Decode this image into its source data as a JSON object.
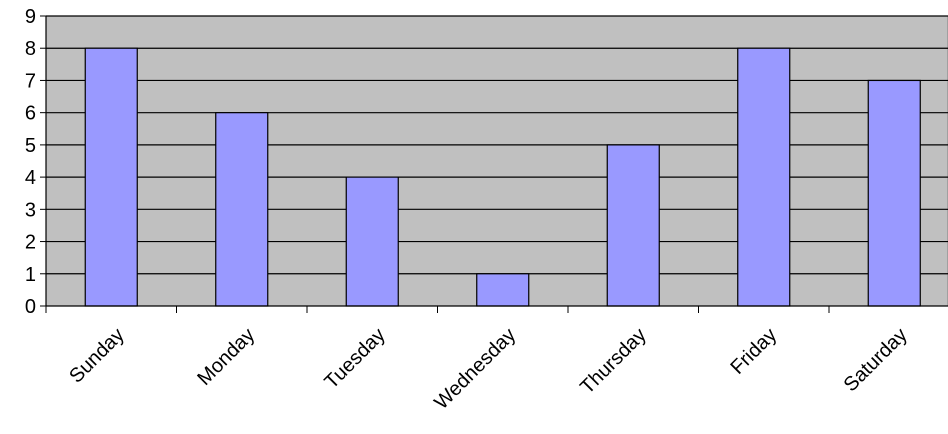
{
  "chart_data": {
    "type": "bar",
    "categories": [
      "Sunday",
      "Monday",
      "Tuesday",
      "Wednesday",
      "Thursday",
      "Friday",
      "Saturday"
    ],
    "values": [
      8,
      6,
      4,
      1,
      5,
      8,
      7
    ],
    "title": "",
    "xlabel": "",
    "ylabel": "",
    "ylim": [
      0,
      9
    ],
    "yticks": [
      "0",
      "1",
      "2",
      "3",
      "4",
      "5",
      "6",
      "7",
      "8",
      "9"
    ],
    "grid": true,
    "legend": "none",
    "colors": {
      "bar_fill": "#9999ff",
      "bar_stroke": "#000000",
      "plot_background": "#c0c0c0",
      "gridline": "#000000"
    }
  }
}
